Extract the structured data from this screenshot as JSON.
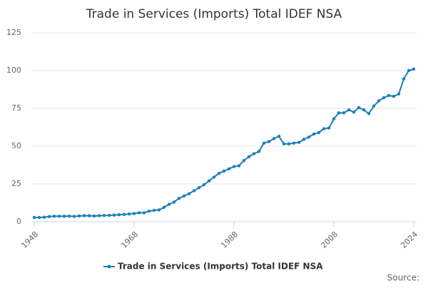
{
  "chart_data": {
    "type": "line",
    "title": "Trade in Services (Imports) Total IDEF NSA",
    "x": [
      1948,
      1949,
      1950,
      1951,
      1952,
      1953,
      1954,
      1955,
      1956,
      1957,
      1958,
      1959,
      1960,
      1961,
      1962,
      1963,
      1964,
      1965,
      1966,
      1967,
      1968,
      1969,
      1970,
      1971,
      1972,
      1973,
      1974,
      1975,
      1976,
      1977,
      1978,
      1979,
      1980,
      1981,
      1982,
      1983,
      1984,
      1985,
      1986,
      1987,
      1988,
      1989,
      1990,
      1991,
      1992,
      1993,
      1994,
      1995,
      1996,
      1997,
      1998,
      1999,
      2000,
      2001,
      2002,
      2003,
      2004,
      2005,
      2006,
      2007,
      2008,
      2009,
      2010,
      2011,
      2012,
      2013,
      2014,
      2015,
      2016,
      2017,
      2018,
      2019,
      2020,
      2021,
      2022,
      2023,
      2024
    ],
    "series": [
      {
        "name": "Trade in Services (Imports) Total IDEF NSA",
        "color": "#1b7fb8",
        "values": [
          2.8,
          2.8,
          3.0,
          3.4,
          3.6,
          3.6,
          3.6,
          3.7,
          3.5,
          3.8,
          4.0,
          3.9,
          3.8,
          4.0,
          4.1,
          4.2,
          4.4,
          4.6,
          4.8,
          5.1,
          5.4,
          5.9,
          5.9,
          7.0,
          7.5,
          7.8,
          9.5,
          11.5,
          13.0,
          15.5,
          17.0,
          18.5,
          20.5,
          22.5,
          24.5,
          27.0,
          29.5,
          32.0,
          33.5,
          35.0,
          36.5,
          37.0,
          40.5,
          43.0,
          45.0,
          46.5,
          52.0,
          53.0,
          55.0,
          56.5,
          51.5,
          51.5,
          52.0,
          52.5,
          54.5,
          56.0,
          58.0,
          59.0,
          61.5,
          62.0,
          68.0,
          72.0,
          72.0,
          74.0,
          72.5,
          75.5,
          74.0,
          71.5,
          76.5,
          80.0,
          82.0,
          83.5,
          83.0,
          84.5,
          94.5,
          100.0,
          101.0
        ]
      }
    ],
    "xlim": [
      1948,
      2024
    ],
    "xticks": [
      1948,
      1968,
      1988,
      2008,
      2024
    ],
    "ylim": [
      0,
      125
    ],
    "yticks": [
      0,
      25,
      50,
      75,
      100,
      125
    ],
    "grid": true,
    "source": "Source:"
  }
}
